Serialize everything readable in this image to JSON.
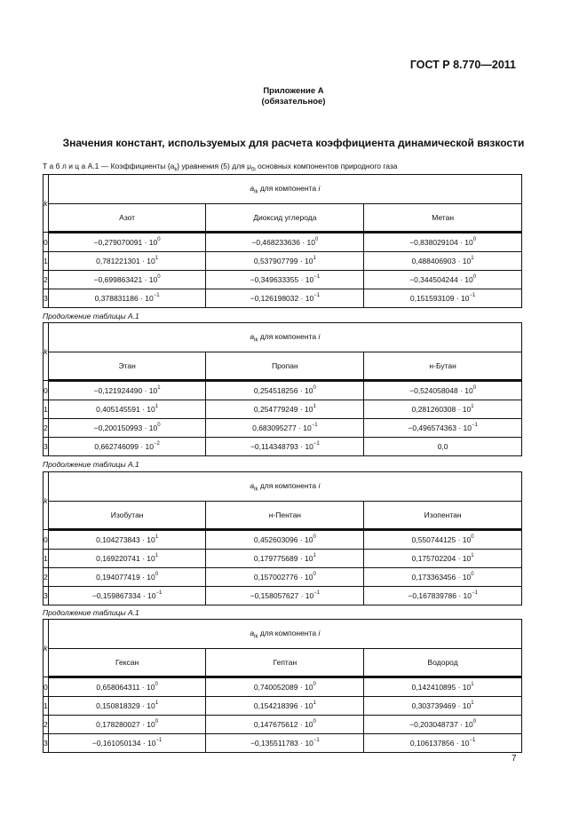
{
  "header": {
    "doc_code": "ГОСТ Р 8.770—2011"
  },
  "annex": {
    "title": "Приложение А",
    "status": "(обязательное)"
  },
  "section_title": "Значения констант, используемых для расчета коэффициента динамической вязкости",
  "table_caption": "Т а б л и ц а   А.1 — Коэффициенты {a",
  "table_caption_sub": "k",
  "table_caption_rest": "} уравнения (5) для μ",
  "table_caption_sub2": "0i",
  "table_caption_end": " основных компонентов природного газа",
  "continuation_label": "Продолжение таблицы А.1",
  "col_k": "k",
  "group_header_a": "a",
  "group_header_sub": "ik",
  "group_header_rest": " для компонента ",
  "group_header_i": "i",
  "multiply_sign": " · 10",
  "tables": [
    {
      "components": [
        "Азот",
        "Диоксид углерода",
        "Метан"
      ],
      "rows": [
        {
          "k": "0",
          "values": [
            {
              "m": "−0,279070091",
              "e": "0"
            },
            {
              "m": "−0,468233636",
              "e": "0"
            },
            {
              "m": "−0,838029104",
              "e": "0"
            }
          ]
        },
        {
          "k": "1",
          "values": [
            {
              "m": "0,781221301",
              "e": "1"
            },
            {
              "m": "0,537907799",
              "e": "1"
            },
            {
              "m": "0,488406903",
              "e": "1"
            }
          ]
        },
        {
          "k": "2",
          "values": [
            {
              "m": "−0,699863421",
              "e": "0"
            },
            {
              "m": "−0,349633355",
              "e": "−1"
            },
            {
              "m": "−0,344504244",
              "e": "0"
            }
          ]
        },
        {
          "k": "3",
          "values": [
            {
              "m": "0,378831186",
              "e": "−1"
            },
            {
              "m": "−0,126198032",
              "e": "−1"
            },
            {
              "m": "0,151593109",
              "e": "−1"
            }
          ]
        }
      ]
    },
    {
      "components": [
        "Этан",
        "Пропан",
        "н-Бутан"
      ],
      "rows": [
        {
          "k": "0",
          "values": [
            {
              "m": "−0,121924490",
              "e": "1"
            },
            {
              "m": "0,254518256",
              "e": "0"
            },
            {
              "m": "−0,524058048",
              "e": "0"
            }
          ]
        },
        {
          "k": "1",
          "values": [
            {
              "m": "0,405145591",
              "e": "1"
            },
            {
              "m": "0,254779249",
              "e": "1"
            },
            {
              "m": "0,281260308",
              "e": "1"
            }
          ]
        },
        {
          "k": "2",
          "values": [
            {
              "m": "−0,200150993",
              "e": "0"
            },
            {
              "m": "0,683095277",
              "e": "−1"
            },
            {
              "m": "−0,496574363",
              "e": "−1"
            }
          ]
        },
        {
          "k": "3",
          "values": [
            {
              "m": "0,662746099",
              "e": "−2"
            },
            {
              "m": "−0,114348793",
              "e": "−1"
            },
            {
              "m": "0,0",
              "e": null
            }
          ]
        }
      ]
    },
    {
      "components": [
        "Изобутан",
        "н-Пентан",
        "Изопентан"
      ],
      "rows": [
        {
          "k": "0",
          "values": [
            {
              "m": "0,104273843",
              "e": "1"
            },
            {
              "m": "0,452603096",
              "e": "0"
            },
            {
              "m": "0,550744125",
              "e": "0"
            }
          ]
        },
        {
          "k": "1",
          "values": [
            {
              "m": "0,169220741",
              "e": "1"
            },
            {
              "m": "0,179775689",
              "e": "1"
            },
            {
              "m": "0,175702204",
              "e": "1"
            }
          ]
        },
        {
          "k": "2",
          "values": [
            {
              "m": "0,194077419",
              "e": "0"
            },
            {
              "m": "0,157002776",
              "e": "0"
            },
            {
              "m": "0,173363456",
              "e": "0"
            }
          ]
        },
        {
          "k": "3",
          "values": [
            {
              "m": "−0,159867334",
              "e": "−1"
            },
            {
              "m": "−0,158057627",
              "e": "−1"
            },
            {
              "m": "−0,167839786",
              "e": "−1"
            }
          ]
        }
      ]
    },
    {
      "components": [
        "Гексан",
        "Гептан",
        "Водород"
      ],
      "rows": [
        {
          "k": "0",
          "values": [
            {
              "m": "0,658064311",
              "e": "0"
            },
            {
              "m": "0,740052089",
              "e": "0"
            },
            {
              "m": "0,142410895",
              "e": "1"
            }
          ]
        },
        {
          "k": "1",
          "values": [
            {
              "m": "0,150818329",
              "e": "1"
            },
            {
              "m": "0,154218396",
              "e": "1"
            },
            {
              "m": "0,303739469",
              "e": "1"
            }
          ]
        },
        {
          "k": "2",
          "values": [
            {
              "m": "0,178280027",
              "e": "0"
            },
            {
              "m": "0,147675612",
              "e": "0"
            },
            {
              "m": "−0,203048737",
              "e": "0"
            }
          ]
        },
        {
          "k": "3",
          "values": [
            {
              "m": "−0,161050134",
              "e": "−1"
            },
            {
              "m": "−0,135511783",
              "e": "−1"
            },
            {
              "m": "0,106137856",
              "e": "−1"
            }
          ]
        }
      ]
    }
  ],
  "page_number": "7"
}
